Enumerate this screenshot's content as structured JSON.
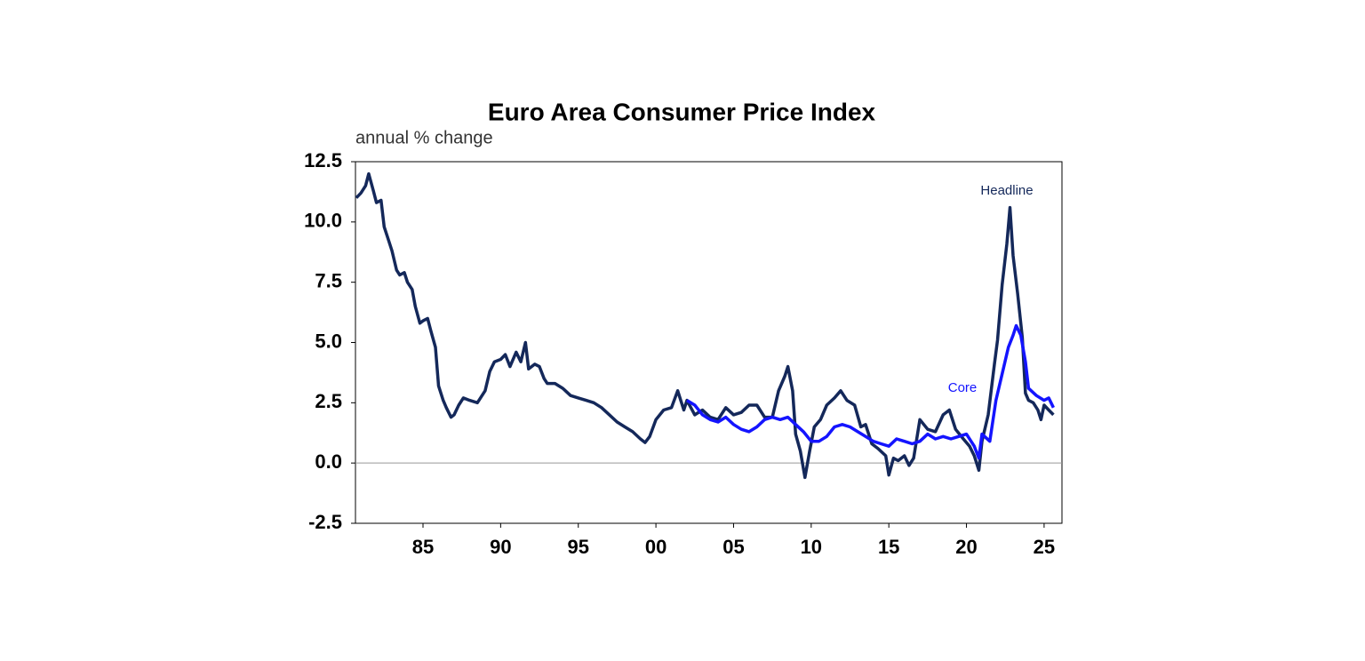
{
  "chart_data": {
    "type": "line",
    "title": "Euro Area Consumer Price Index",
    "subtitle": "annual % change",
    "xlim": [
      1980.65,
      2026.15
    ],
    "xticks": [
      {
        "value": 1985,
        "label": "85"
      },
      {
        "value": 1990,
        "label": "90"
      },
      {
        "value": 1995,
        "label": "95"
      },
      {
        "value": 2000,
        "label": "00"
      },
      {
        "value": 2005,
        "label": "05"
      },
      {
        "value": 2010,
        "label": "10"
      },
      {
        "value": 2015,
        "label": "15"
      },
      {
        "value": 2020,
        "label": "20"
      },
      {
        "value": 2025,
        "label": "25"
      }
    ],
    "ylim": [
      -2.5,
      12.5
    ],
    "yticks": [
      {
        "value": -2.5,
        "label": "-2.5"
      },
      {
        "value": 0,
        "label": "0.0"
      },
      {
        "value": 2.5,
        "label": "2.5"
      },
      {
        "value": 5,
        "label": "5.0"
      },
      {
        "value": 7.5,
        "label": "7.5"
      },
      {
        "value": 10,
        "label": "10.0"
      },
      {
        "value": 12.5,
        "label": "12.5"
      }
    ],
    "zero_line": true,
    "series": [
      {
        "name": "Headline",
        "color": "#14285a",
        "x": [
          1980.7,
          1981.0,
          1981.3,
          1981.5,
          1981.8,
          1982.0,
          1982.3,
          1982.5,
          1982.8,
          1983.0,
          1983.3,
          1983.5,
          1983.8,
          1984.0,
          1984.3,
          1984.5,
          1984.8,
          1985.0,
          1985.3,
          1985.5,
          1985.8,
          1986.0,
          1986.3,
          1986.5,
          1986.8,
          1987.0,
          1987.3,
          1987.6,
          1988.0,
          1988.5,
          1989.0,
          1989.3,
          1989.6,
          1990.0,
          1990.3,
          1990.6,
          1991.0,
          1991.3,
          1991.6,
          1991.8,
          1992.2,
          1992.5,
          1992.8,
          1993.0,
          1993.5,
          1994.0,
          1994.5,
          1995.0,
          1995.5,
          1996.0,
          1996.5,
          1997.0,
          1997.5,
          1998.0,
          1998.5,
          1999.0,
          1999.3,
          1999.6,
          2000.0,
          2000.5,
          2001.0,
          2001.4,
          2001.8,
          2002.0,
          2002.5,
          2003.0,
          2003.5,
          2004.0,
          2004.5,
          2005.0,
          2005.5,
          2006.0,
          2006.5,
          2007.0,
          2007.5,
          2007.9,
          2008.3,
          2008.5,
          2008.8,
          2009.0,
          2009.3,
          2009.6,
          2009.9,
          2010.2,
          2010.6,
          2011.0,
          2011.5,
          2011.9,
          2012.3,
          2012.8,
          2013.2,
          2013.5,
          2013.9,
          2014.3,
          2014.8,
          2015.0,
          2015.3,
          2015.6,
          2016.0,
          2016.3,
          2016.6,
          2017.0,
          2017.5,
          2018.0,
          2018.5,
          2018.9,
          2019.3,
          2019.8,
          2020.2,
          2020.5,
          2020.8,
          2021.0,
          2021.4,
          2021.8,
          2022.0,
          2022.3,
          2022.6,
          2022.8,
          2023.0,
          2023.3,
          2023.6,
          2023.8,
          2024.0,
          2024.3,
          2024.6,
          2024.8,
          2025.0,
          2025.3,
          2025.6
        ],
        "values": [
          11.0,
          11.2,
          11.5,
          12.0,
          11.3,
          10.8,
          10.9,
          9.8,
          9.2,
          8.8,
          8.0,
          7.8,
          7.9,
          7.5,
          7.2,
          6.5,
          5.8,
          5.9,
          6.0,
          5.5,
          4.8,
          3.2,
          2.6,
          2.3,
          1.9,
          2.0,
          2.4,
          2.7,
          2.6,
          2.5,
          3.0,
          3.8,
          4.2,
          4.3,
          4.5,
          4.0,
          4.6,
          4.2,
          5.0,
          3.9,
          4.1,
          4.0,
          3.5,
          3.3,
          3.3,
          3.1,
          2.8,
          2.7,
          2.6,
          2.5,
          2.3,
          2.0,
          1.7,
          1.5,
          1.3,
          1.0,
          0.85,
          1.1,
          1.8,
          2.2,
          2.3,
          3.0,
          2.2,
          2.6,
          2.0,
          2.2,
          1.9,
          1.8,
          2.3,
          2.0,
          2.1,
          2.4,
          2.4,
          1.9,
          1.9,
          3.0,
          3.6,
          4.0,
          3.0,
          1.2,
          0.5,
          -0.6,
          0.5,
          1.5,
          1.8,
          2.4,
          2.7,
          3.0,
          2.6,
          2.4,
          1.5,
          1.6,
          0.8,
          0.6,
          0.3,
          -0.5,
          0.2,
          0.1,
          0.3,
          -0.1,
          0.2,
          1.8,
          1.4,
          1.3,
          2.0,
          2.2,
          1.4,
          1.0,
          0.7,
          0.3,
          -0.3,
          0.9,
          2.0,
          4.1,
          5.1,
          7.4,
          9.1,
          10.6,
          8.6,
          7.0,
          5.2,
          2.9,
          2.6,
          2.5,
          2.2,
          1.8,
          2.4,
          2.2,
          2.0
        ]
      },
      {
        "name": "Core",
        "color": "#1414ff",
        "x": [
          2002.0,
          2002.5,
          2003.0,
          2003.5,
          2004.0,
          2004.5,
          2005.0,
          2005.5,
          2006.0,
          2006.5,
          2007.0,
          2007.5,
          2008.0,
          2008.5,
          2009.0,
          2009.5,
          2010.0,
          2010.5,
          2011.0,
          2011.5,
          2012.0,
          2012.5,
          2013.0,
          2013.5,
          2014.0,
          2014.5,
          2015.0,
          2015.5,
          2016.0,
          2016.5,
          2017.0,
          2017.5,
          2018.0,
          2018.5,
          2019.0,
          2019.5,
          2020.0,
          2020.5,
          2020.8,
          2021.0,
          2021.5,
          2021.9,
          2022.3,
          2022.7,
          2023.0,
          2023.2,
          2023.5,
          2023.8,
          2024.0,
          2024.5,
          2025.0,
          2025.3,
          2025.6
        ],
        "values": [
          2.6,
          2.4,
          2.0,
          1.8,
          1.7,
          1.9,
          1.6,
          1.4,
          1.3,
          1.5,
          1.8,
          1.9,
          1.8,
          1.9,
          1.6,
          1.3,
          0.9,
          0.9,
          1.1,
          1.5,
          1.6,
          1.5,
          1.3,
          1.1,
          0.9,
          0.8,
          0.7,
          1.0,
          0.9,
          0.8,
          0.9,
          1.2,
          1.0,
          1.1,
          1.0,
          1.1,
          1.2,
          0.7,
          0.2,
          1.2,
          0.9,
          2.6,
          3.7,
          4.8,
          5.3,
          5.7,
          5.3,
          4.2,
          3.1,
          2.8,
          2.6,
          2.7,
          2.3
        ]
      }
    ]
  }
}
